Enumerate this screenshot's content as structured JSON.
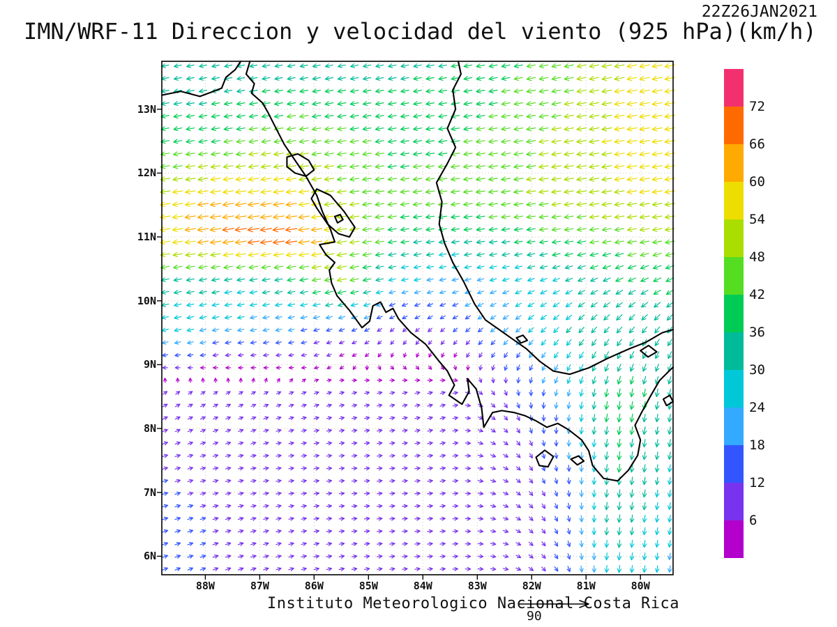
{
  "header": {
    "timestamp": "22Z26JAN2021",
    "title": "IMN/WRF-11 Direccion y velocidad del viento (925 hPa)(km/h)"
  },
  "footer": {
    "credit": "Instituto Meteorologico Nacional Costa Rica",
    "ref_arrow_label": "90"
  },
  "chart_data": {
    "type": "vector-field-map",
    "title": "IMN/WRF-11 Direccion y velocidad del viento (925 hPa)(km/h)",
    "model": "IMN/WRF-11",
    "valid_time": "22Z26JAN2021",
    "level": "925 hPa",
    "units": "km/h",
    "region": "Central America / Costa Rica",
    "axes": {
      "lon_range": [
        88.8,
        79.4
      ],
      "lat_range": [
        5.71,
        13.75
      ],
      "lat_ticks": [
        {
          "label": "13N",
          "value": 13
        },
        {
          "label": "12N",
          "value": 12
        },
        {
          "label": "11N",
          "value": 11
        },
        {
          "label": "10N",
          "value": 10
        },
        {
          "label": "9N",
          "value": 9
        },
        {
          "label": "8N",
          "value": 8
        },
        {
          "label": "7N",
          "value": 7
        },
        {
          "label": "6N",
          "value": 6
        }
      ],
      "lon_ticks": [
        {
          "label": "88W",
          "value": 88
        },
        {
          "label": "87W",
          "value": 87
        },
        {
          "label": "86W",
          "value": 86
        },
        {
          "label": "85W",
          "value": 85
        },
        {
          "label": "84W",
          "value": 84
        },
        {
          "label": "83W",
          "value": 83
        },
        {
          "label": "82W",
          "value": 82
        },
        {
          "label": "81W",
          "value": 81
        },
        {
          "label": "80W",
          "value": 80
        }
      ],
      "grid_lats": [
        6,
        7,
        8,
        9,
        10,
        11,
        12,
        13
      ],
      "grid_lons": [
        80,
        81,
        82,
        83,
        84,
        85,
        86,
        87,
        88
      ]
    },
    "colorbar": {
      "units": "km/h",
      "boundaries": [
        6,
        12,
        18,
        24,
        30,
        36,
        42,
        48,
        54,
        60,
        66,
        72
      ],
      "colors": [
        "#b300cc",
        "#7733ee",
        "#3355ff",
        "#33aaff",
        "#00c8d8",
        "#00bb99",
        "#00cc55",
        "#55dd22",
        "#aadd00",
        "#eedd00",
        "#ffaa00",
        "#ff6a00",
        "#f23070"
      ]
    },
    "style": {
      "graticule_color": "#cfc3b2",
      "coast_color": "#000000"
    },
    "wind_grid": {
      "comment_units": "u eastward km/h, v northward km/h, sampled control grid",
      "lons_w": [
        88.8,
        87.5,
        86.5,
        85.5,
        84.5,
        83.5,
        82.5,
        81.5,
        80.5,
        79.4
      ],
      "lats": [
        13.75,
        12.5,
        11.6,
        11.0,
        10.3,
        9.5,
        8.5,
        7.5,
        6.5,
        5.7
      ],
      "u": [
        [
          -29,
          -29,
          -31,
          -32,
          -34,
          -35,
          -39,
          -44,
          -52,
          -57
        ],
        [
          -39,
          -42,
          -47,
          -44,
          -39,
          -41,
          -45,
          -49,
          -54,
          -57
        ],
        [
          -55,
          -62,
          -59,
          -49,
          -44,
          -44,
          -47,
          -49,
          -53,
          -54
        ],
        [
          -57,
          -69,
          -72,
          -54,
          -39,
          -34,
          -37,
          -41,
          -45,
          -49
        ],
        [
          -34,
          -31,
          -33,
          -48,
          -24,
          -21,
          -23,
          -27,
          -32,
          -35
        ],
        [
          -24,
          -21,
          -17,
          -12,
          -6,
          -8,
          -16,
          -20,
          -22,
          -18
        ],
        [
          8,
          7,
          7,
          7,
          8,
          9,
          6,
          -4,
          -6,
          -6
        ],
        [
          11,
          9,
          8,
          9,
          9,
          10,
          10,
          2,
          -5,
          -4
        ],
        [
          13,
          11,
          9,
          9,
          9,
          9,
          10,
          6,
          -4,
          -4
        ],
        [
          12,
          11,
          10,
          9,
          9,
          9,
          10,
          7,
          -3,
          -3
        ]
      ],
      "v": [
        [
          -6,
          -6,
          -6,
          -7,
          -7,
          -7,
          -8,
          -9,
          -10,
          -11
        ],
        [
          -7,
          -7,
          -8,
          -7,
          -6,
          -6,
          -7,
          -8,
          -9,
          -9
        ],
        [
          -8,
          -9,
          -8,
          -7,
          -6,
          -6,
          -7,
          -7,
          -8,
          -8
        ],
        [
          -8,
          -10,
          -10,
          -8,
          -6,
          -5,
          -5,
          -6,
          -7,
          -7
        ],
        [
          -7,
          -6,
          -7,
          -10,
          -6,
          -5,
          -8,
          -11,
          -15,
          -18
        ],
        [
          -6,
          -5,
          -4,
          -5,
          -6,
          -8,
          -14,
          -22,
          -27,
          -26
        ],
        [
          5,
          4,
          3,
          2,
          2,
          3,
          -10,
          -19,
          -39,
          -34
        ],
        [
          3,
          2,
          1,
          1,
          1,
          2,
          -5,
          -14,
          -37,
          -29
        ],
        [
          4,
          3,
          2,
          1,
          1,
          1,
          -3,
          -12,
          -33,
          -25
        ],
        [
          5,
          4,
          3,
          2,
          1,
          1,
          -2,
          -10,
          -29,
          -22
        ]
      ]
    },
    "map": {
      "coastlines": [
        [
          [
            88.8,
            13.22
          ],
          [
            88.45,
            13.28
          ],
          [
            88.1,
            13.2
          ],
          [
            87.85,
            13.28
          ],
          [
            87.7,
            13.33
          ],
          [
            87.62,
            13.5
          ],
          [
            87.45,
            13.62
          ],
          [
            87.35,
            13.75
          ]
        ],
        [
          [
            87.18,
            13.75
          ],
          [
            87.25,
            13.55
          ],
          [
            87.1,
            13.4
          ],
          [
            87.15,
            13.25
          ],
          [
            86.95,
            13.1
          ],
          [
            86.85,
            12.95
          ],
          [
            86.7,
            12.7
          ],
          [
            86.55,
            12.45
          ],
          [
            86.35,
            12.2
          ],
          [
            86.15,
            11.95
          ],
          [
            85.95,
            11.65
          ],
          [
            85.85,
            11.4
          ],
          [
            85.7,
            11.12
          ],
          [
            85.62,
            10.92
          ],
          [
            85.9,
            10.88
          ],
          [
            85.78,
            10.72
          ],
          [
            85.62,
            10.6
          ],
          [
            85.72,
            10.48
          ],
          [
            85.68,
            10.28
          ],
          [
            85.58,
            10.08
          ],
          [
            85.35,
            9.85
          ],
          [
            85.12,
            9.58
          ],
          [
            84.98,
            9.68
          ],
          [
            84.92,
            9.92
          ],
          [
            84.78,
            9.98
          ],
          [
            84.68,
            9.82
          ],
          [
            84.55,
            9.88
          ],
          [
            84.45,
            9.72
          ],
          [
            84.22,
            9.5
          ],
          [
            83.95,
            9.32
          ],
          [
            83.7,
            9.05
          ],
          [
            83.55,
            8.9
          ],
          [
            83.42,
            8.68
          ],
          [
            83.52,
            8.52
          ],
          [
            83.28,
            8.38
          ],
          [
            83.15,
            8.58
          ],
          [
            83.18,
            8.78
          ],
          [
            83.02,
            8.62
          ],
          [
            82.92,
            8.32
          ],
          [
            82.88,
            8.02
          ],
          [
            82.72,
            8.25
          ],
          [
            82.55,
            8.28
          ],
          [
            82.32,
            8.25
          ],
          [
            82.12,
            8.2
          ],
          [
            81.92,
            8.12
          ],
          [
            81.72,
            8.02
          ],
          [
            81.52,
            8.08
          ],
          [
            81.32,
            7.98
          ],
          [
            81.08,
            7.82
          ],
          [
            80.95,
            7.65
          ],
          [
            80.88,
            7.42
          ],
          [
            80.68,
            7.22
          ],
          [
            80.42,
            7.18
          ],
          [
            80.22,
            7.35
          ],
          [
            80.05,
            7.58
          ],
          [
            80.0,
            7.82
          ],
          [
            80.1,
            8.05
          ],
          [
            79.98,
            8.25
          ],
          [
            79.82,
            8.5
          ],
          [
            79.65,
            8.75
          ],
          [
            79.45,
            8.92
          ],
          [
            79.4,
            8.96
          ]
        ],
        [
          [
            79.4,
            9.55
          ],
          [
            79.6,
            9.5
          ],
          [
            79.9,
            9.35
          ],
          [
            80.2,
            9.25
          ],
          [
            80.6,
            9.1
          ],
          [
            80.95,
            8.95
          ],
          [
            81.3,
            8.85
          ],
          [
            81.6,
            8.9
          ],
          [
            81.85,
            9.05
          ],
          [
            82.1,
            9.25
          ],
          [
            82.35,
            9.4
          ],
          [
            82.6,
            9.55
          ],
          [
            82.85,
            9.7
          ],
          [
            83.05,
            9.95
          ],
          [
            83.25,
            10.3
          ],
          [
            83.45,
            10.6
          ],
          [
            83.6,
            10.9
          ],
          [
            83.7,
            11.2
          ],
          [
            83.65,
            11.55
          ],
          [
            83.75,
            11.85
          ],
          [
            83.55,
            12.15
          ],
          [
            83.4,
            12.4
          ],
          [
            83.55,
            12.7
          ],
          [
            83.4,
            13.0
          ],
          [
            83.45,
            13.3
          ],
          [
            83.3,
            13.55
          ],
          [
            83.35,
            13.75
          ]
        ],
        [
          [
            86.5,
            12.25
          ],
          [
            86.3,
            12.3
          ],
          [
            86.1,
            12.2
          ],
          [
            86.0,
            12.05
          ],
          [
            86.15,
            11.95
          ],
          [
            86.35,
            12.0
          ],
          [
            86.5,
            12.1
          ],
          [
            86.5,
            12.25
          ]
        ],
        [
          [
            85.95,
            11.75
          ],
          [
            85.7,
            11.65
          ],
          [
            85.45,
            11.4
          ],
          [
            85.25,
            11.15
          ],
          [
            85.35,
            11.0
          ],
          [
            85.55,
            11.05
          ],
          [
            85.75,
            11.2
          ],
          [
            85.95,
            11.45
          ],
          [
            86.05,
            11.6
          ],
          [
            85.95,
            11.75
          ]
        ],
        [
          [
            85.62,
            11.32
          ],
          [
            85.52,
            11.35
          ],
          [
            85.47,
            11.27
          ],
          [
            85.57,
            11.22
          ],
          [
            85.62,
            11.32
          ]
        ],
        [
          [
            80.0,
            9.22
          ],
          [
            79.86,
            9.12
          ],
          [
            79.7,
            9.2
          ],
          [
            79.85,
            9.3
          ],
          [
            80.0,
            9.22
          ]
        ],
        [
          [
            81.92,
            7.55
          ],
          [
            81.76,
            7.66
          ],
          [
            81.6,
            7.56
          ],
          [
            81.7,
            7.4
          ],
          [
            81.86,
            7.42
          ],
          [
            81.92,
            7.55
          ]
        ],
        [
          [
            81.28,
            7.52
          ],
          [
            81.14,
            7.57
          ],
          [
            81.04,
            7.49
          ],
          [
            81.16,
            7.43
          ],
          [
            81.28,
            7.52
          ]
        ],
        [
          [
            79.58,
            8.46
          ],
          [
            79.46,
            8.52
          ],
          [
            79.4,
            8.42
          ],
          [
            79.52,
            8.36
          ],
          [
            79.58,
            8.46
          ]
        ],
        [
          [
            82.28,
            9.42
          ],
          [
            82.16,
            9.46
          ],
          [
            82.08,
            9.38
          ],
          [
            82.2,
            9.34
          ],
          [
            82.28,
            9.42
          ]
        ]
      ]
    }
  }
}
